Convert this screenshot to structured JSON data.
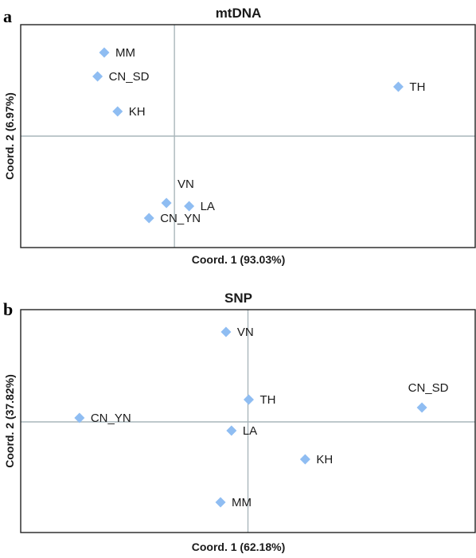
{
  "chart_data": [
    {
      "type": "scatter",
      "panel_letter": "a",
      "title": "mtDNA",
      "xlabel": "Coord. 1 (93.03%)",
      "ylabel": "Coord. 2 (6.97%)",
      "xlim": [
        -0.23,
        0.45
      ],
      "ylim": [
        -0.14,
        0.14
      ],
      "marker": "diamond",
      "marker_color": "#8fbdf2",
      "grid": "crosshair-at-origin",
      "points": [
        {
          "label": "MM",
          "x": -0.105,
          "y": 0.105
        },
        {
          "label": "CN_SD",
          "x": -0.115,
          "y": 0.075
        },
        {
          "label": "KH",
          "x": -0.085,
          "y": 0.031
        },
        {
          "label": "TH",
          "x": 0.335,
          "y": 0.062
        },
        {
          "label": "VN",
          "x": -0.012,
          "y": -0.084
        },
        {
          "label": "LA",
          "x": 0.022,
          "y": -0.088
        },
        {
          "label": "CN_YN",
          "x": -0.038,
          "y": -0.103
        }
      ]
    },
    {
      "type": "scatter",
      "panel_letter": "b",
      "title": "SNP",
      "xlabel": "Coord. 1 (62.18%)",
      "ylabel": "Coord. 2 (37.82%)",
      "xlim": [
        -0.29,
        0.29
      ],
      "ylim": [
        -0.139,
        0.141
      ],
      "marker": "diamond",
      "marker_color": "#8fbdf2",
      "grid": "crosshair-at-origin",
      "points": [
        {
          "label": "VN",
          "x": -0.028,
          "y": 0.113
        },
        {
          "label": "TH",
          "x": 0.001,
          "y": 0.028
        },
        {
          "label": "CN_SD",
          "x": 0.222,
          "y": 0.018
        },
        {
          "label": "CN_YN",
          "x": -0.215,
          "y": 0.005
        },
        {
          "label": "LA",
          "x": -0.021,
          "y": -0.011
        },
        {
          "label": "KH",
          "x": 0.073,
          "y": -0.047
        },
        {
          "label": "MM",
          "x": -0.035,
          "y": -0.101
        }
      ]
    }
  ]
}
